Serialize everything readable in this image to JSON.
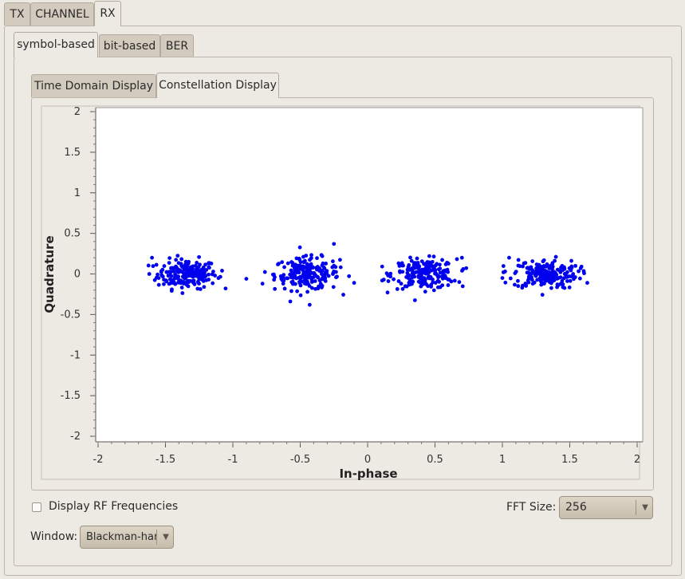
{
  "top_tabs": [
    "TX",
    "CHANNEL",
    "RX"
  ],
  "rx_tabs": [
    "symbol-based",
    "bit-based",
    "BER"
  ],
  "display_tabs": [
    "Time Domain Display",
    "Constellation Display"
  ],
  "controls": {
    "display_rf_label": "Display RF Frequencies",
    "display_rf_checked": false,
    "fft_label": "FFT Size:",
    "fft_value": "256",
    "window_label": "Window:",
    "window_value": "Blackman-harris"
  },
  "colors": {
    "points": "#0000ee",
    "tab_bg": "#d3cbbd",
    "panel_bg": "#ede9e3"
  },
  "icons": {
    "dropdown": "triangle-down"
  },
  "chart_data": {
    "type": "scatter",
    "xlabel": "In-phase",
    "ylabel": "Quadrature",
    "xlim": [
      -2,
      2
    ],
    "ylim": [
      -2,
      2
    ],
    "xticks": [
      "-2",
      "-1.5",
      "-1",
      "-0.5",
      "0",
      "0.5",
      "1",
      "1.5",
      "2"
    ],
    "yticks": [
      "2",
      "1.5",
      "1",
      "0.5",
      "0",
      "-0.5",
      "-1",
      "-1.5",
      "-2"
    ],
    "grid": false,
    "clusters": [
      {
        "center": [
          -1.34,
          0.0
        ],
        "spread": [
          0.11,
          0.09
        ],
        "count": 200
      },
      {
        "center": [
          -0.45,
          0.0
        ],
        "spread": [
          0.12,
          0.1
        ],
        "count": 200
      },
      {
        "center": [
          0.42,
          0.0
        ],
        "spread": [
          0.12,
          0.09
        ],
        "count": 200
      },
      {
        "center": [
          1.32,
          0.0
        ],
        "spread": [
          0.12,
          0.09
        ],
        "count": 200
      }
    ],
    "outliers": [
      [
        -1.62,
        0.0
      ],
      [
        -1.55,
        -0.05
      ],
      [
        -1.08,
        0.04
      ],
      [
        -1.6,
        0.2
      ],
      [
        -0.9,
        -0.06
      ],
      [
        -0.78,
        -0.12
      ],
      [
        -0.1,
        -0.11
      ],
      [
        -0.25,
        0.37
      ],
      [
        -0.43,
        -0.38
      ],
      [
        0.12,
        -0.07
      ],
      [
        0.7,
        0.2
      ],
      [
        0.68,
        -0.1
      ],
      [
        1.0,
        -0.05
      ],
      [
        1.02,
        0.03
      ],
      [
        1.63,
        -0.11
      ],
      [
        1.05,
        0.2
      ]
    ]
  }
}
